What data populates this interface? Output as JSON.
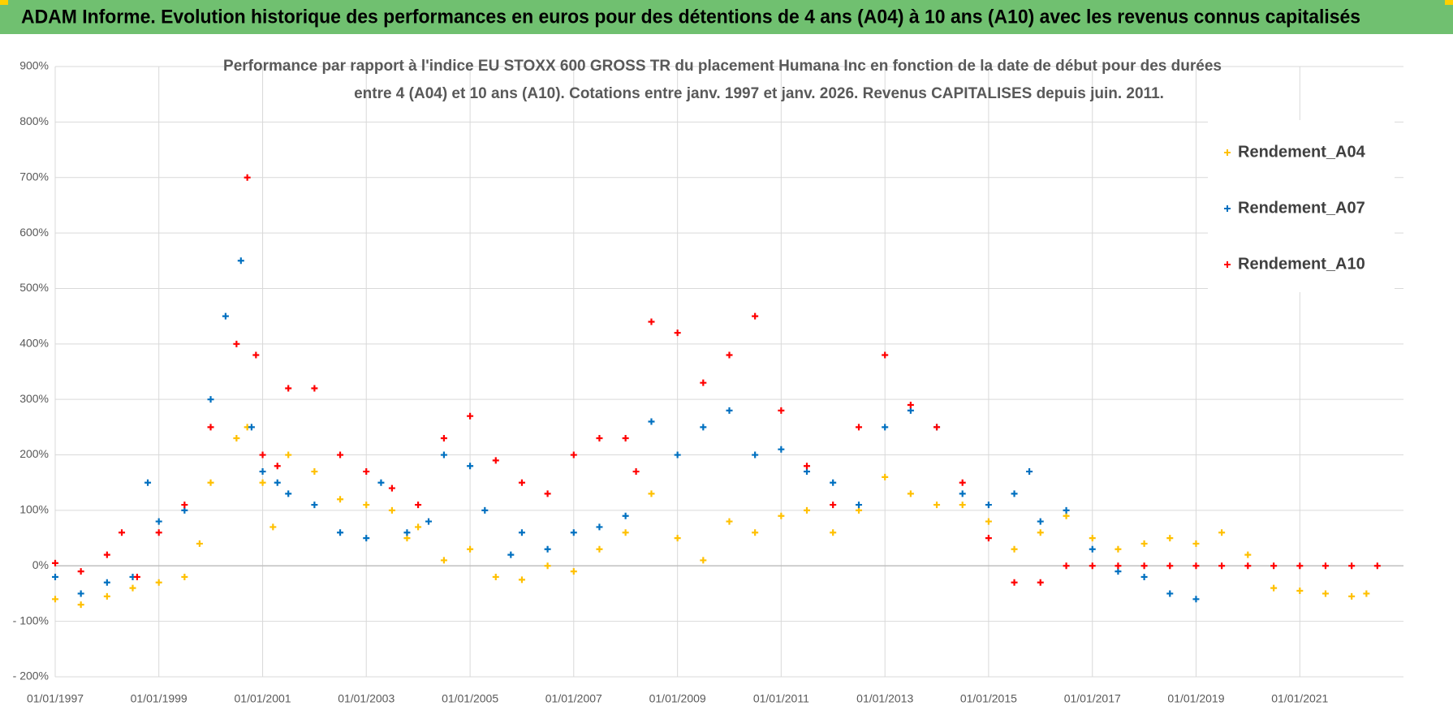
{
  "header": {
    "title": "ADAM Informe. Evolution historique des performances en euros pour des détentions de 4 ans (A04) à 10 ans (A10) avec les revenus connus capitalisés"
  },
  "chart_data": {
    "type": "scatter",
    "title": [
      "Performance par rapport à l'indice EU STOXX 600 GROSS TR  du placement Humana Inc en fonction de la date de début pour des durées",
      "entre 4 (A04) et 10 ans (A10).  Cotations entre janv. 1997 et janv. 2026. Revenus CAPITALISES depuis juin. 2011."
    ],
    "xlim": [
      "1997-01-01",
      "2023-01-01"
    ],
    "xticks": [
      {
        "value": "1997-01-01",
        "label": "01/01/1997"
      },
      {
        "value": "1999-01-01",
        "label": "01/01/1999"
      },
      {
        "value": "2001-01-01",
        "label": "01/01/2001"
      },
      {
        "value": "2003-01-01",
        "label": "01/01/2003"
      },
      {
        "value": "2005-01-01",
        "label": "01/01/2005"
      },
      {
        "value": "2007-01-01",
        "label": "01/01/2007"
      },
      {
        "value": "2009-01-01",
        "label": "01/01/2009"
      },
      {
        "value": "2011-01-01",
        "label": "01/01/2011"
      },
      {
        "value": "2013-01-01",
        "label": "01/01/2013"
      },
      {
        "value": "2015-01-01",
        "label": "01/01/2015"
      },
      {
        "value": "2017-01-01",
        "label": "01/01/2017"
      },
      {
        "value": "2019-01-01",
        "label": "01/01/2019"
      },
      {
        "value": "2021-01-01",
        "label": "01/01/2021"
      }
    ],
    "ylim": [
      -200,
      900
    ],
    "yticks": [
      {
        "value": -200,
        "label": "- 200%"
      },
      {
        "value": -100,
        "label": "- 100%"
      },
      {
        "value": 0,
        "label": "0%"
      },
      {
        "value": 100,
        "label": "100%"
      },
      {
        "value": 200,
        "label": "200%"
      },
      {
        "value": 300,
        "label": "300%"
      },
      {
        "value": 400,
        "label": "400%"
      },
      {
        "value": 500,
        "label": "500%"
      },
      {
        "value": 600,
        "label": "600%"
      },
      {
        "value": 700,
        "label": "700%"
      },
      {
        "value": 800,
        "label": "800%"
      },
      {
        "value": 900,
        "label": "900%"
      }
    ],
    "grid": true,
    "series": [
      {
        "name": "Rendement_A04",
        "color": "#ffc000",
        "x": [
          "1997-01-01",
          "1997-07-01",
          "1998-01-01",
          "1998-07-01",
          "1999-01-01",
          "1999-07-01",
          "1999-10-15",
          "2000-01-01",
          "2000-07-01",
          "2000-09-15",
          "2001-01-01",
          "2001-03-15",
          "2001-07-01",
          "2002-01-01",
          "2002-07-01",
          "2003-01-01",
          "2003-07-01",
          "2003-10-15",
          "2004-01-01",
          "2004-07-01",
          "2005-01-01",
          "2005-07-01",
          "2006-01-01",
          "2006-07-01",
          "2007-01-01",
          "2007-07-01",
          "2008-01-01",
          "2008-07-01",
          "2009-01-01",
          "2009-07-01",
          "2010-01-01",
          "2010-07-01",
          "2011-01-01",
          "2011-07-01",
          "2012-01-01",
          "2012-07-01",
          "2013-01-01",
          "2013-07-01",
          "2014-01-01",
          "2014-07-01",
          "2015-01-01",
          "2015-07-01",
          "2016-01-01",
          "2016-07-01",
          "2017-01-01",
          "2017-07-01",
          "2018-01-01",
          "2018-07-01",
          "2019-01-01",
          "2019-07-01",
          "2020-01-01",
          "2020-07-01",
          "2021-01-01",
          "2021-07-01",
          "2022-01-01",
          "2022-04-15"
        ],
        "values": [
          -60,
          -70,
          -55,
          -40,
          -30,
          -20,
          40,
          150,
          230,
          250,
          150,
          70,
          200,
          170,
          120,
          110,
          100,
          50,
          70,
          10,
          30,
          -20,
          -25,
          0,
          -10,
          30,
          60,
          130,
          50,
          10,
          80,
          60,
          90,
          100,
          60,
          100,
          160,
          130,
          110,
          110,
          80,
          30,
          60,
          90,
          50,
          30,
          40,
          50,
          40,
          60,
          20,
          -40,
          -45,
          -50,
          -55,
          -50
        ]
      },
      {
        "name": "Rendement_A07",
        "color": "#0070c0",
        "x": [
          "1997-01-01",
          "1997-07-01",
          "1998-01-01",
          "1998-07-01",
          "1998-10-15",
          "1999-01-01",
          "1999-07-01",
          "2000-01-01",
          "2000-04-15",
          "2000-08-01",
          "2000-10-15",
          "2001-01-01",
          "2001-04-15",
          "2001-07-01",
          "2002-01-01",
          "2002-07-01",
          "2003-01-01",
          "2003-04-15",
          "2003-10-15",
          "2004-03-15",
          "2004-07-01",
          "2005-01-01",
          "2005-04-15",
          "2005-10-15",
          "2006-01-01",
          "2006-07-01",
          "2007-01-01",
          "2007-07-01",
          "2008-01-01",
          "2008-07-01",
          "2009-01-01",
          "2009-07-01",
          "2010-01-01",
          "2010-07-01",
          "2011-01-01",
          "2011-07-01",
          "2012-01-01",
          "2012-07-01",
          "2013-01-01",
          "2013-07-01",
          "2014-01-01",
          "2014-07-01",
          "2015-01-01",
          "2015-07-01",
          "2015-10-15",
          "2016-01-01",
          "2016-07-01",
          "2017-01-01",
          "2017-07-01",
          "2018-01-01",
          "2018-07-01",
          "2019-01-01"
        ],
        "values": [
          -20,
          -50,
          -30,
          -20,
          150,
          80,
          100,
          300,
          450,
          550,
          250,
          170,
          150,
          130,
          110,
          60,
          50,
          150,
          60,
          80,
          200,
          180,
          100,
          20,
          60,
          30,
          60,
          70,
          90,
          260,
          200,
          250,
          280,
          200,
          210,
          170,
          150,
          110,
          250,
          280,
          250,
          130,
          110,
          130,
          170,
          80,
          100,
          30,
          -10,
          -20,
          -50,
          -60
        ]
      },
      {
        "name": "Rendement_A10",
        "color": "#ff0000",
        "x": [
          "1997-01-01",
          "1997-07-01",
          "1998-01-01",
          "1998-04-15",
          "1998-08-01",
          "1999-01-01",
          "1999-07-01",
          "2000-01-01",
          "2000-07-01",
          "2000-09-15",
          "2000-11-15",
          "2001-01-01",
          "2001-04-15",
          "2001-07-01",
          "2002-01-01",
          "2002-07-01",
          "2003-01-01",
          "2003-07-01",
          "2004-01-01",
          "2004-07-01",
          "2005-01-01",
          "2005-07-01",
          "2006-01-01",
          "2006-07-01",
          "2007-01-01",
          "2007-07-01",
          "2008-01-01",
          "2008-03-15",
          "2008-07-01",
          "2009-01-01",
          "2009-07-01",
          "2010-01-01",
          "2010-07-01",
          "2011-01-01",
          "2011-07-01",
          "2012-01-01",
          "2012-07-01",
          "2013-01-01",
          "2013-07-01",
          "2014-01-01",
          "2014-07-01",
          "2015-01-01",
          "2015-07-01",
          "2016-01-01",
          "2016-07-01",
          "2017-01-01",
          "2017-07-01",
          "2018-01-01",
          "2018-07-01",
          "2019-01-01",
          "2019-07-01",
          "2020-01-01",
          "2020-07-01",
          "2021-01-01",
          "2021-07-01",
          "2022-01-01",
          "2022-07-01"
        ],
        "values": [
          5,
          -10,
          20,
          60,
          -20,
          60,
          110,
          250,
          400,
          700,
          380,
          200,
          180,
          320,
          320,
          200,
          170,
          140,
          110,
          230,
          270,
          190,
          150,
          130,
          200,
          230,
          230,
          170,
          440,
          420,
          330,
          380,
          450,
          280,
          180,
          110,
          250,
          380,
          290,
          250,
          150,
          50,
          -30,
          -30,
          0,
          0,
          0,
          0,
          0,
          0,
          0,
          0,
          0,
          0,
          0,
          0,
          0
        ]
      }
    ]
  }
}
